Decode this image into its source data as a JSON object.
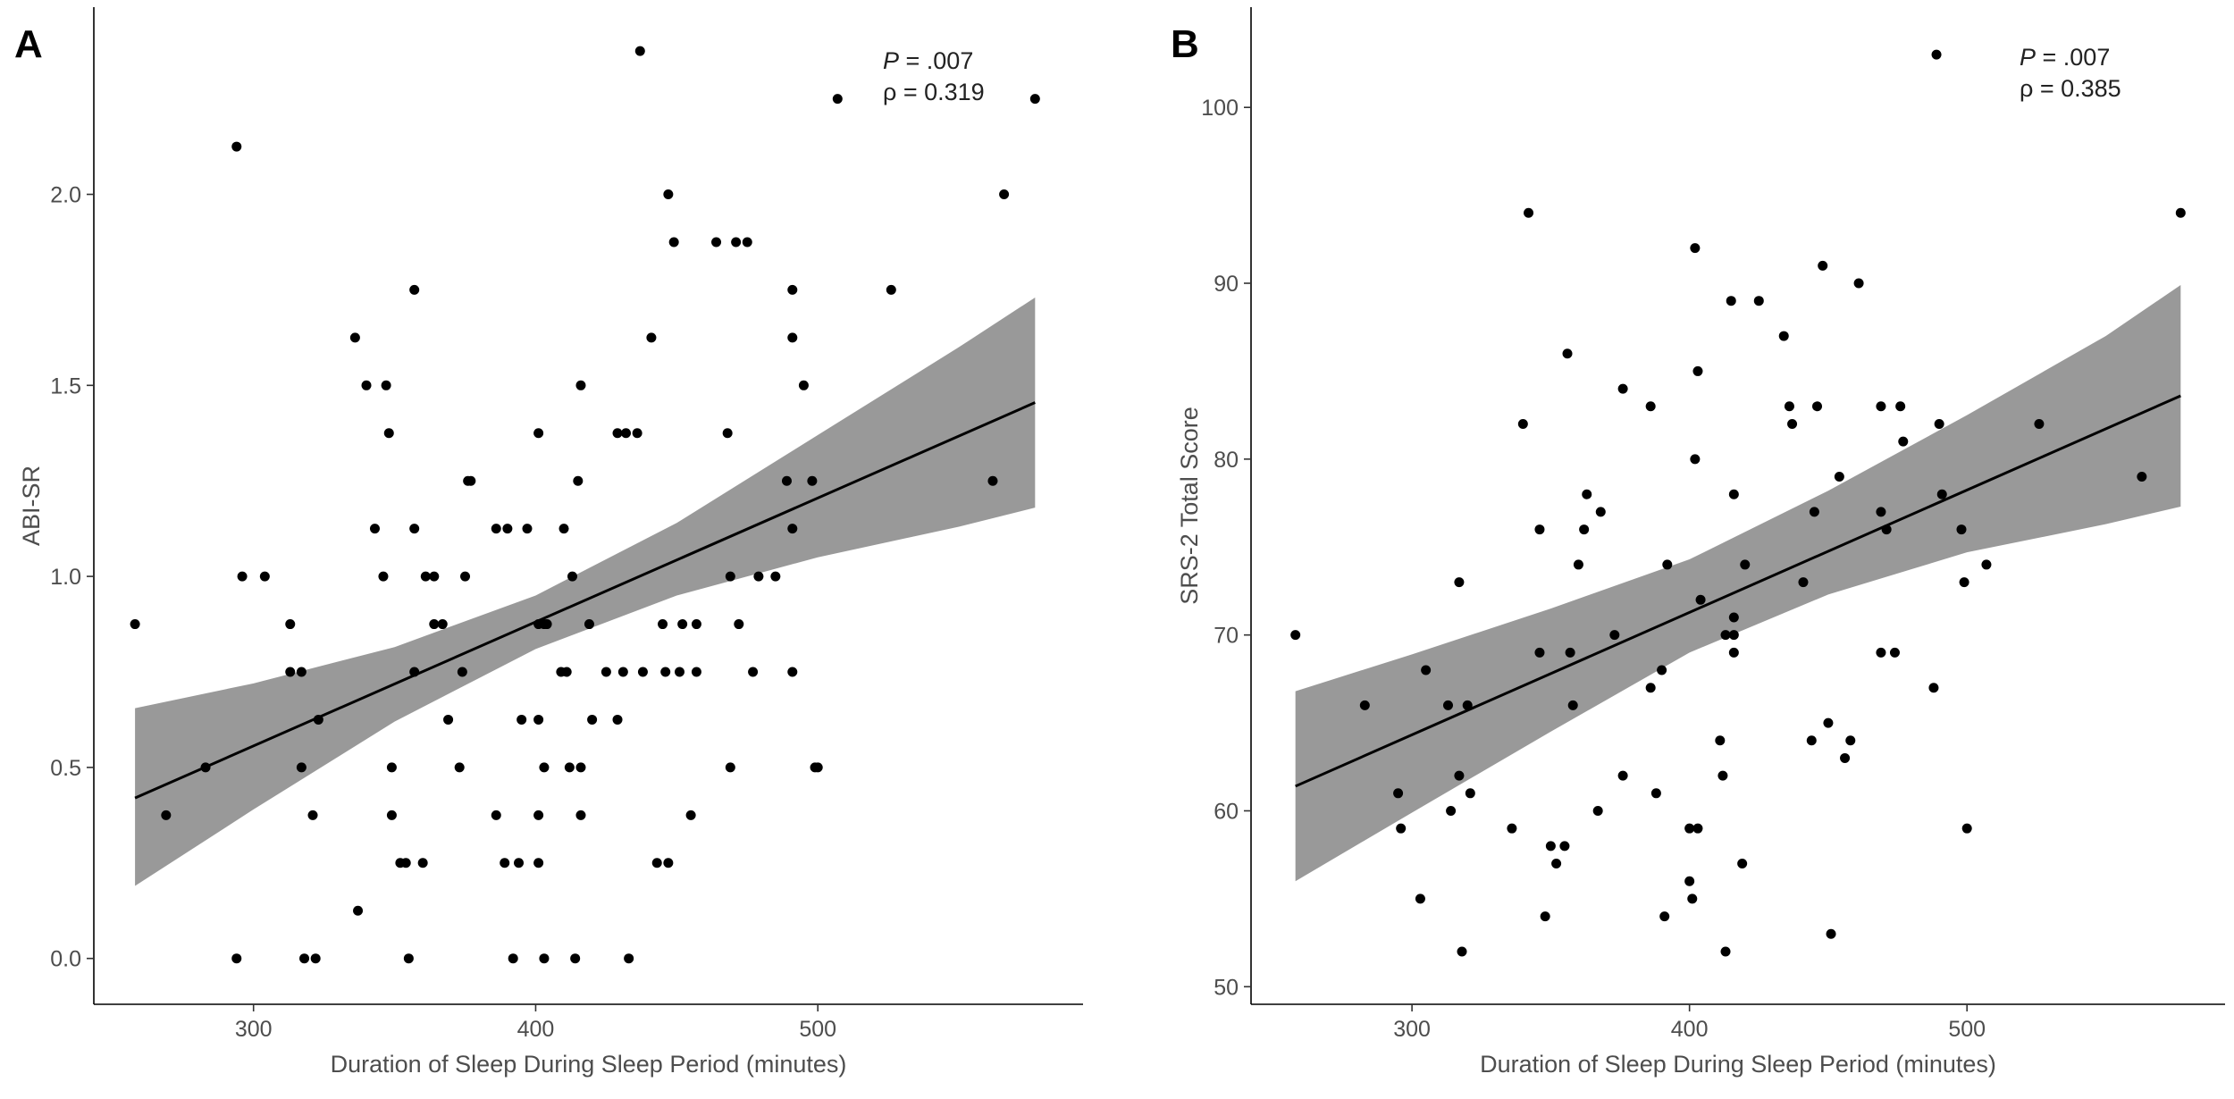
{
  "chart_data": [
    {
      "type": "scatter",
      "panel": "A",
      "annotation": {
        "p_symbol": "P",
        "p_text": " = .007",
        "rho": "ρ = 0.319"
      },
      "x_label": "Duration of Sleep During Sleep Period (minutes)",
      "y_label": "ABI-SR",
      "xlim": [
        243.4,
        594
      ],
      "ylim": [
        -0.12,
        2.49
      ],
      "xticks": [
        300,
        400,
        500
      ],
      "yticks": [
        {
          "value": 0,
          "label": "0.0"
        },
        0.5,
        {
          "value": 1,
          "label": "1.0"
        },
        1.5,
        {
          "value": 2,
          "label": "2.0"
        }
      ],
      "color": "#000000",
      "band_color": "#999999",
      "x": [
        258,
        269,
        283,
        294,
        294,
        296,
        304,
        313,
        313,
        317,
        317,
        318,
        321,
        322,
        323,
        336,
        337,
        340,
        343,
        346,
        347,
        348,
        349,
        349,
        352,
        354,
        355,
        357,
        357,
        357,
        360,
        361,
        364,
        364,
        367,
        369,
        373,
        374,
        375,
        376,
        377,
        386,
        386,
        389,
        390,
        392,
        394,
        395,
        397,
        401,
        401,
        401,
        401,
        401,
        403,
        403,
        404,
        403,
        409,
        410,
        411,
        412,
        413,
        414,
        415,
        416,
        416,
        416,
        419,
        420,
        425,
        429,
        429,
        431,
        432,
        433,
        436,
        437,
        438,
        441,
        443,
        445,
        446,
        447,
        447,
        449,
        451,
        452,
        455,
        457,
        457,
        464,
        468,
        469,
        469,
        471,
        472,
        475,
        477,
        479,
        485,
        489,
        491,
        491,
        491,
        491,
        495,
        499,
        498,
        500,
        507,
        526,
        562,
        566,
        577
      ],
      "values": [
        0.875,
        0.375,
        0.5,
        2.125,
        0,
        1,
        1,
        0.875,
        0.75,
        0.75,
        0.5,
        0,
        0.375,
        0,
        0.625,
        1.625,
        0.125,
        1.5,
        1.125,
        1,
        1.5,
        1.375,
        0.5,
        0.375,
        0.25,
        0.25,
        0,
        1.75,
        1.125,
        0.75,
        0.25,
        1,
        1,
        0.875,
        0.875,
        0.625,
        0.5,
        0.75,
        1,
        1.25,
        1.25,
        1.125,
        0.375,
        0.25,
        1.125,
        0,
        0.25,
        0.625,
        1.125,
        1.375,
        0.875,
        0.625,
        0.375,
        0.25,
        0.875,
        0.5,
        0.875,
        0,
        0.75,
        1.125,
        0.75,
        0.5,
        1,
        0,
        1.25,
        1.5,
        0.5,
        0.375,
        0.875,
        0.625,
        0.75,
        1.375,
        0.625,
        0.75,
        1.375,
        0,
        1.375,
        2.375,
        0.75,
        1.625,
        0.25,
        0.875,
        0.75,
        2,
        0.25,
        1.875,
        0.75,
        0.875,
        0.375,
        0.875,
        0.75,
        1.875,
        1.375,
        1,
        0.5,
        1.875,
        0.875,
        1.875,
        0.75,
        1,
        1,
        1.25,
        1.75,
        1.625,
        1.125,
        0.75,
        1.5,
        0.5,
        1.25,
        0.5,
        2.25,
        1.75,
        1.25,
        2,
        2.25
      ],
      "fit": {
        "x": [
          258,
          577
        ],
        "y": [
          0.42,
          1.455
        ]
      },
      "band": {
        "x": [
          258,
          300,
          350,
          400,
          450,
          500,
          550,
          577
        ],
        "lower": [
          0.19,
          0.39,
          0.62,
          0.81,
          0.95,
          1.05,
          1.13,
          1.18
        ],
        "upper": [
          0.655,
          0.72,
          0.815,
          0.95,
          1.14,
          1.37,
          1.6,
          1.73
        ]
      }
    },
    {
      "type": "scatter",
      "panel": "B",
      "annotation": {
        "p_symbol": "P",
        "p_text": " = .007",
        "rho": "ρ = 0.385"
      },
      "x_label": "Duration of Sleep During Sleep Period (minutes)",
      "y_label": "SRS-2 Total Score",
      "xlim": [
        242,
        593
      ],
      "ylim": [
        49,
        105.7
      ],
      "xticks": [
        300,
        400,
        500
      ],
      "yticks": [
        50,
        60,
        70,
        80,
        90,
        100
      ],
      "color": "#000000",
      "band_color": "#999999",
      "x": [
        258,
        283,
        295,
        296,
        303,
        305,
        313,
        314,
        317,
        317,
        318,
        320,
        321,
        336,
        340,
        342,
        346,
        346,
        348,
        350,
        352,
        355,
        356,
        357,
        358,
        360,
        362,
        363,
        367,
        368,
        373,
        376,
        376,
        386,
        386,
        388,
        390,
        391,
        392,
        400,
        400,
        401,
        402,
        402,
        403,
        403,
        404,
        411,
        412,
        413,
        413,
        415,
        416,
        416,
        416,
        416,
        419,
        420,
        425,
        434,
        436,
        437,
        441,
        444,
        445,
        446,
        448,
        450,
        451,
        454,
        456,
        458,
        461,
        469,
        469,
        469,
        471,
        474,
        476,
        477,
        488,
        490,
        491,
        489,
        498,
        499,
        500,
        507,
        526,
        563,
        577
      ],
      "values": [
        70,
        66,
        61,
        59,
        55,
        68,
        66,
        60,
        73,
        62,
        52,
        66,
        61,
        59,
        82,
        94,
        76,
        69,
        54,
        58,
        57,
        58,
        86,
        69,
        66,
        74,
        76,
        78,
        60,
        77,
        70,
        84,
        62,
        83,
        67,
        61,
        68,
        54,
        74,
        59,
        56,
        55,
        92,
        80,
        59,
        85,
        72,
        64,
        62,
        70,
        52,
        89,
        78,
        71,
        70,
        69,
        57,
        74,
        89,
        87,
        83,
        82,
        73,
        64,
        77,
        83,
        91,
        65,
        53,
        79,
        63,
        64,
        90,
        83,
        77,
        69,
        76,
        69,
        83,
        81,
        67,
        82,
        78,
        103,
        76,
        73,
        59,
        74,
        82,
        79,
        94
      ],
      "fit": {
        "x": [
          258,
          577
        ],
        "y": [
          61.4,
          83.6
        ]
      },
      "band": {
        "x": [
          258,
          300,
          350,
          400,
          450,
          500,
          550,
          577
        ],
        "lower": [
          56,
          59.9,
          64.5,
          69,
          72.3,
          74.7,
          76.3,
          77.3
        ],
        "upper": [
          66.8,
          68.9,
          71.5,
          74.3,
          78.2,
          82.5,
          87,
          89.9
        ]
      }
    }
  ]
}
